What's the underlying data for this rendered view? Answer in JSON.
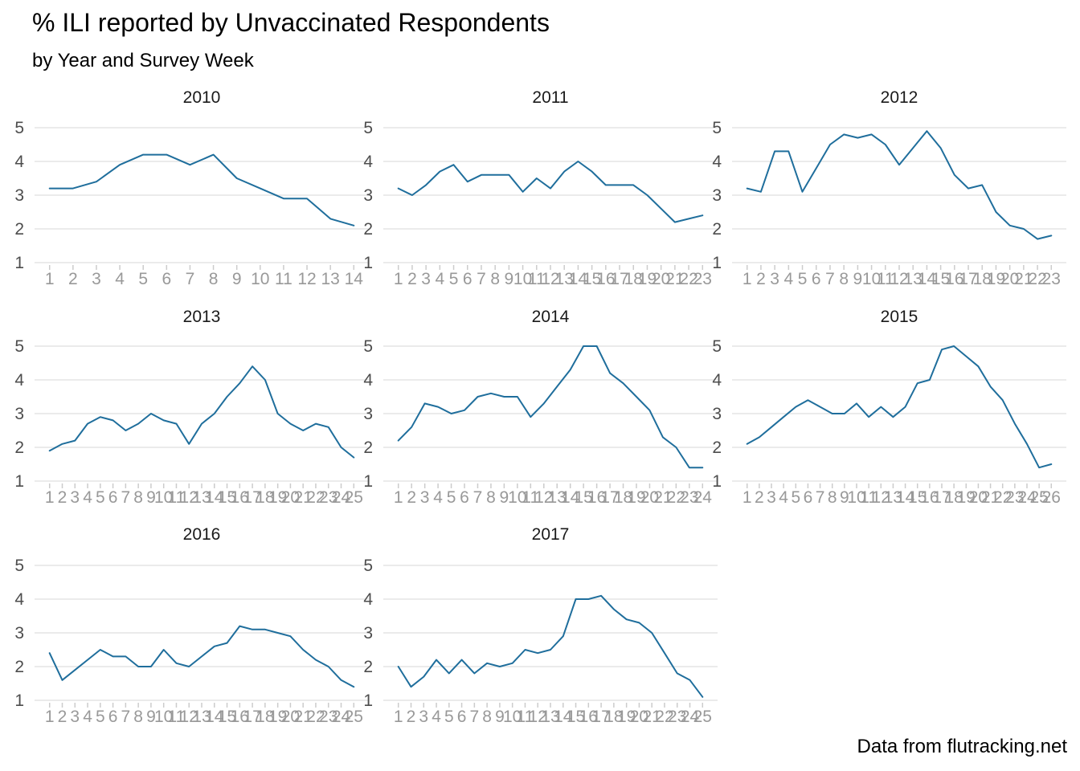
{
  "chart_data": {
    "type": "line",
    "title": "% ILI reported by Unvaccinated Respondents",
    "subtitle": "by Year and Survey Week",
    "caption": "Data from flutracking.net",
    "xlabel": "",
    "ylabel": "",
    "ylim": [
      1,
      5
    ],
    "yticks": [
      1,
      2,
      3,
      4,
      5
    ],
    "grid": true,
    "line_color": "#1f6e9c",
    "facets": [
      {
        "name": "2010",
        "x": [
          1,
          2,
          3,
          4,
          5,
          6,
          7,
          8,
          9,
          10,
          11,
          12,
          13,
          14
        ],
        "values": [
          3.2,
          3.2,
          3.4,
          3.9,
          4.2,
          4.2,
          3.9,
          4.2,
          3.5,
          3.2,
          2.9,
          2.9,
          2.3,
          2.1
        ]
      },
      {
        "name": "2011",
        "x": [
          1,
          2,
          3,
          4,
          5,
          6,
          7,
          8,
          9,
          10,
          11,
          12,
          13,
          14,
          15,
          16,
          17,
          18,
          19,
          20,
          21,
          22,
          23
        ],
        "values": [
          3.2,
          3.0,
          3.3,
          3.7,
          3.9,
          3.4,
          3.6,
          3.6,
          3.6,
          3.1,
          3.5,
          3.2,
          3.7,
          4.0,
          3.7,
          3.3,
          3.3,
          3.3,
          3.0,
          2.6,
          2.2,
          2.3,
          2.4
        ]
      },
      {
        "name": "2012",
        "x": [
          1,
          2,
          3,
          4,
          5,
          6,
          7,
          8,
          9,
          10,
          11,
          12,
          13,
          14,
          15,
          16,
          17,
          18,
          19,
          20,
          21,
          22,
          23
        ],
        "values": [
          3.2,
          3.1,
          4.3,
          4.3,
          3.1,
          3.8,
          4.5,
          4.8,
          4.7,
          4.8,
          4.5,
          3.9,
          4.4,
          4.9,
          4.4,
          3.6,
          3.2,
          3.3,
          2.5,
          2.1,
          2.0,
          1.7,
          1.8
        ]
      },
      {
        "name": "2013",
        "x": [
          1,
          2,
          3,
          4,
          5,
          6,
          7,
          8,
          9,
          10,
          11,
          12,
          13,
          14,
          15,
          16,
          17,
          18,
          19,
          20,
          21,
          22,
          23,
          24,
          25
        ],
        "values": [
          1.9,
          2.1,
          2.2,
          2.7,
          2.9,
          2.8,
          2.5,
          2.7,
          3.0,
          2.8,
          2.7,
          2.1,
          2.7,
          3.0,
          3.5,
          3.9,
          4.4,
          4.0,
          3.0,
          2.7,
          2.5,
          2.7,
          2.6,
          2.0,
          1.7
        ]
      },
      {
        "name": "2014",
        "x": [
          1,
          2,
          3,
          4,
          5,
          6,
          7,
          8,
          9,
          10,
          11,
          12,
          13,
          14,
          15,
          16,
          17,
          18,
          19,
          20,
          21,
          22,
          23,
          24
        ],
        "values": [
          2.2,
          2.6,
          3.3,
          3.2,
          3.0,
          3.1,
          3.5,
          3.6,
          3.5,
          3.5,
          2.9,
          3.3,
          3.8,
          4.3,
          5.0,
          5.0,
          4.2,
          3.9,
          3.5,
          3.1,
          2.3,
          2.0,
          1.4,
          1.4
        ]
      },
      {
        "name": "2015",
        "x": [
          1,
          2,
          3,
          4,
          5,
          6,
          7,
          8,
          9,
          10,
          11,
          12,
          13,
          14,
          15,
          16,
          17,
          18,
          19,
          20,
          21,
          22,
          23,
          24,
          25,
          26
        ],
        "values": [
          2.1,
          2.3,
          2.6,
          2.9,
          3.2,
          3.4,
          3.2,
          3.0,
          3.0,
          3.3,
          2.9,
          3.2,
          2.9,
          3.2,
          3.9,
          4.0,
          4.9,
          5.0,
          4.7,
          4.4,
          3.8,
          3.4,
          2.7,
          2.1,
          1.4,
          1.5
        ]
      },
      {
        "name": "2016",
        "x": [
          1,
          2,
          3,
          4,
          5,
          6,
          7,
          8,
          9,
          10,
          11,
          12,
          13,
          14,
          15,
          16,
          17,
          18,
          19,
          20,
          21,
          22,
          23,
          24,
          25
        ],
        "values": [
          2.4,
          1.6,
          1.9,
          2.2,
          2.5,
          2.3,
          2.3,
          2.0,
          2.0,
          2.5,
          2.1,
          2.0,
          2.3,
          2.6,
          2.7,
          3.2,
          3.1,
          3.1,
          3.0,
          2.9,
          2.5,
          2.2,
          2.0,
          1.6,
          1.4
        ]
      },
      {
        "name": "2017",
        "x": [
          1,
          2,
          3,
          4,
          5,
          6,
          7,
          8,
          9,
          10,
          11,
          12,
          13,
          14,
          15,
          16,
          17,
          18,
          19,
          20,
          21,
          22,
          23,
          24,
          25
        ],
        "values": [
          2.0,
          1.4,
          1.7,
          2.2,
          1.8,
          2.2,
          1.8,
          2.1,
          2.0,
          2.1,
          2.5,
          2.4,
          2.5,
          2.9,
          4.0,
          4.0,
          4.1,
          3.7,
          3.4,
          3.3,
          3.0,
          2.4,
          1.8,
          1.6,
          1.1
        ]
      }
    ]
  }
}
